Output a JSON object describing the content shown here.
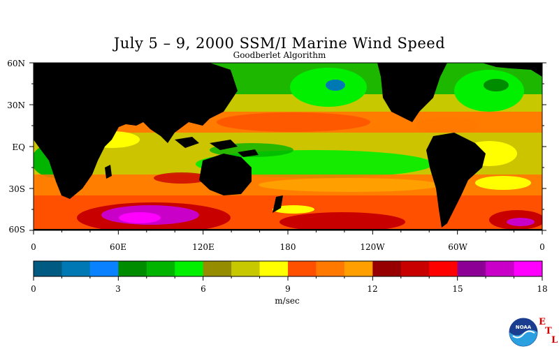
{
  "title": "July 5 – 9, 2000 SSM/I Marine Wind Speed",
  "subtitle": "Goodberlet Algorithm",
  "map": {
    "lat_labels": [
      "60N",
      "30N",
      "EQ",
      "30S",
      "60S"
    ],
    "lon_labels": [
      "0",
      "60E",
      "120E",
      "180",
      "120W",
      "60W",
      "0"
    ],
    "land_color": "#000000"
  },
  "colorbar": {
    "colors": [
      "#005a82",
      "#0078b4",
      "#0a82ff",
      "#008c00",
      "#00b400",
      "#00f000",
      "#968c00",
      "#c8c800",
      "#ffff00",
      "#ff5000",
      "#ff7800",
      "#ffa000",
      "#960000",
      "#c80000",
      "#ff0000",
      "#8c0096",
      "#c800c8",
      "#ff00ff"
    ],
    "min": 0,
    "max": 18,
    "ticks": [
      "0",
      "3",
      "6",
      "9",
      "12",
      "15",
      "18"
    ],
    "units": "m/sec"
  },
  "logo": {
    "name": "noaa-logo",
    "text": "NOAA",
    "etl": [
      "E",
      "T",
      "L"
    ]
  }
}
